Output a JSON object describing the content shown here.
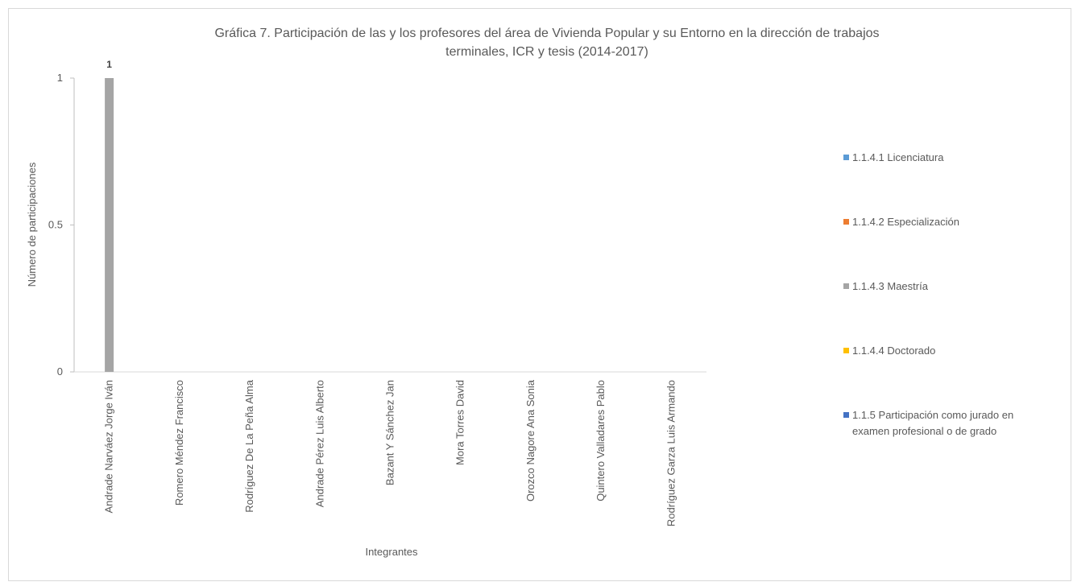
{
  "chart_data": {
    "type": "bar",
    "title_lines": [
      "Gráfica 7. Participación de las y los profesores del área de Vivienda Popular y su Entorno en la dirección de trabajos",
      "terminales, ICR y tesis (2014-2017)"
    ],
    "xlabel": "Integrantes",
    "ylabel": "Número de participaciones",
    "ylim": [
      0,
      1
    ],
    "yticks": [
      "0",
      "0.5",
      "1"
    ],
    "categories": [
      "Andrade Narváez Jorge Iván",
      "Romero Méndez Francisco",
      "Rodríguez De La Peña Alma",
      "Andrade Pérez Luis Alberto",
      "Bazant Y Sánchez Jan",
      "Mora Torres David",
      "Orozco Nagore Ana Sonia",
      "Quintero Valladares Pablo",
      "Rodríguez Garza Luis Armando"
    ],
    "series": [
      {
        "name": "1.1.4.1 Licenciatura",
        "color": "#5b9bd5",
        "values": [
          0,
          0,
          0,
          0,
          0,
          0,
          0,
          0,
          0
        ]
      },
      {
        "name": "1.1.4.2 Especialización",
        "color": "#ed7d31",
        "values": [
          0,
          0,
          0,
          0,
          0,
          0,
          0,
          0,
          0
        ]
      },
      {
        "name": "1.1.4.3 Maestría",
        "color": "#a5a5a5",
        "values": [
          1,
          0,
          0,
          0,
          0,
          0,
          0,
          0,
          0
        ]
      },
      {
        "name": "1.1.4.4 Doctorado",
        "color": "#ffc000",
        "values": [
          0,
          0,
          0,
          0,
          0,
          0,
          0,
          0,
          0
        ]
      },
      {
        "name_lines": [
          "1.1.5 Participación como jurado en",
          "examen profesional o de grado"
        ],
        "color": "#4472c4",
        "values": [
          0,
          0,
          0,
          0,
          0,
          0,
          0,
          0,
          0
        ]
      }
    ],
    "data_labels": [
      {
        "series": 2,
        "category": 0,
        "text": "1"
      }
    ],
    "legend_position": "right",
    "grid": false
  }
}
